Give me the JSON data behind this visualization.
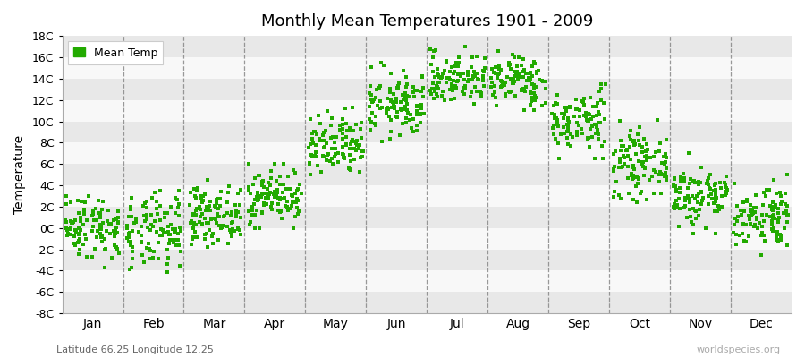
{
  "title": "Monthly Mean Temperatures 1901 - 2009",
  "ylabel": "Temperature",
  "xlabel_bottom": "Latitude 66.25 Longitude 12.25",
  "watermark": "worldspecies.org",
  "legend_label": "Mean Temp",
  "dot_color": "#22aa00",
  "background_color": "#f2f2f2",
  "band_color_light": "#f8f8f8",
  "band_color_dark": "#e8e8e8",
  "ylim": [
    -8,
    18
  ],
  "yticks": [
    -8,
    -6,
    -4,
    -2,
    0,
    2,
    4,
    6,
    8,
    10,
    12,
    14,
    16,
    18
  ],
  "ytick_labels": [
    "-8C",
    "-6C",
    "-4C",
    "-2C",
    "0C",
    "2C",
    "4C",
    "6C",
    "8C",
    "10C",
    "12C",
    "14C",
    "16C",
    "18C"
  ],
  "months": [
    "Jan",
    "Feb",
    "Mar",
    "Apr",
    "May",
    "Jun",
    "Jul",
    "Aug",
    "Sep",
    "Oct",
    "Nov",
    "Dec"
  ],
  "month_means": [
    0.2,
    -0.5,
    1.2,
    3.0,
    7.5,
    11.5,
    14.0,
    13.8,
    10.0,
    6.0,
    3.0,
    1.2
  ],
  "month_stds": [
    1.5,
    1.8,
    1.3,
    1.3,
    1.5,
    1.5,
    1.2,
    1.2,
    1.5,
    1.5,
    1.5,
    1.5
  ],
  "month_mins": [
    -4.8,
    -5.0,
    -2.5,
    0.0,
    4.0,
    7.5,
    11.0,
    10.5,
    6.5,
    2.0,
    -0.5,
    -2.5
  ],
  "month_maxs": [
    3.0,
    3.5,
    4.5,
    6.0,
    11.5,
    15.5,
    17.0,
    16.8,
    13.5,
    10.5,
    7.0,
    5.0
  ],
  "n_years": 109,
  "seed": 42
}
